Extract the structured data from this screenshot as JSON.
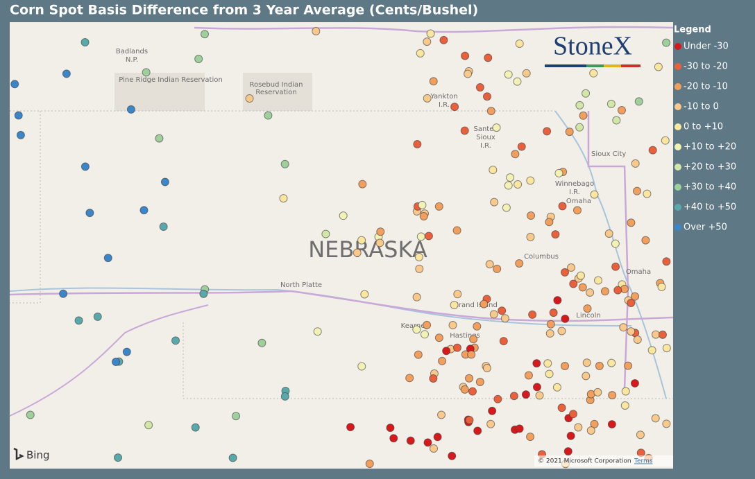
{
  "title": "Corn Spot Basis Difference from 3 Year Average (Cents/Bushel)",
  "legend": {
    "title": "Legend",
    "items": [
      {
        "label": "Under -30",
        "color": "#d7191c"
      },
      {
        "label": "-30 to -20",
        "color": "#e9603a"
      },
      {
        "label": "-20 to -10",
        "color": "#f29e5c"
      },
      {
        "label": "-10 to 0",
        "color": "#f8c98a"
      },
      {
        "label": "0 to +10",
        "color": "#fbe6a0"
      },
      {
        "label": "+10 to +20",
        "color": "#f2f2b4"
      },
      {
        "label": "+20 to +30",
        "color": "#d2e6a8"
      },
      {
        "label": "+30 to +40",
        "color": "#9fd09c"
      },
      {
        "label": "+40 to +50",
        "color": "#5aa9aa"
      },
      {
        "label": "Over +50",
        "color": "#3a86c8"
      }
    ]
  },
  "map": {
    "labels": [
      "Badlands",
      "N.P.",
      "Pine Ridge Indian Reservation",
      "Rosebud Indian",
      "Reservation",
      "Yankton",
      "I.R.",
      "Santee",
      "Sioux",
      "I.R.",
      "Sioux City",
      "Winnebago",
      "I.R.",
      "Omaha",
      "NEBRASKA",
      "North Platte",
      "Columbus",
      "Grand Island",
      "Kearney",
      "Hastings",
      "Lincoln",
      "Omaha"
    ]
  },
  "logo": "StoneX",
  "attribution": {
    "provider": "Bing",
    "copyright": "© 2021 Microsoft Corporation",
    "terms": "Terms"
  }
}
